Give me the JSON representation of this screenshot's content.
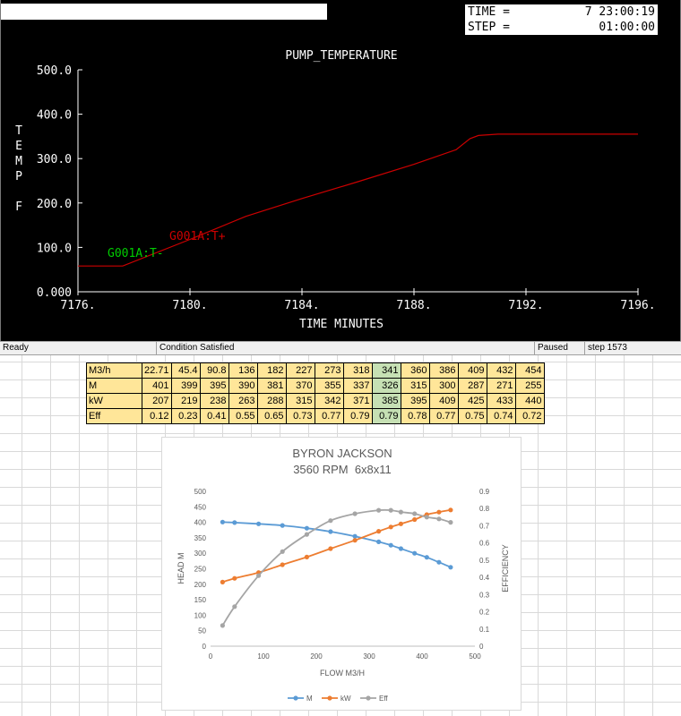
{
  "sim": {
    "time_label": "TIME =",
    "time_value": "7 23:00:19",
    "step_label": "STEP =",
    "step_value": "01:00:00",
    "plot_title": "PUMP_TEMPERATURE",
    "ylabel_letters": [
      "T",
      "E",
      "M",
      "P",
      "",
      "F"
    ],
    "xlabel": "TIME MINUTES",
    "y_ticks": [
      "500.0",
      "400.0",
      "300.0",
      "200.0",
      "100.0",
      "0.000"
    ],
    "x_ticks": [
      "7176.",
      "7180.",
      "7184.",
      "7188.",
      "7192.",
      "7196."
    ],
    "label_tplus": "G001A:T+",
    "label_tminus": "G001A:T-",
    "colors": {
      "background": "#000000",
      "axis": "#ffffff",
      "series": "#cc0000",
      "tminus": "#00cc00"
    }
  },
  "statusbar": {
    "ready": "Ready",
    "condition": "Condition Satisfied",
    "paused": "Paused",
    "step": "step 1573"
  },
  "table": {
    "rows": [
      {
        "header": "M3/h",
        "values": [
          "22.71",
          "45.4",
          "90.8",
          "136",
          "182",
          "227",
          "273",
          "318",
          "341",
          "360",
          "386",
          "409",
          "432",
          "454"
        ]
      },
      {
        "header": "M",
        "values": [
          "401",
          "399",
          "395",
          "390",
          "381",
          "370",
          "355",
          "337",
          "326",
          "315",
          "300",
          "287",
          "271",
          "255"
        ]
      },
      {
        "header": "kW",
        "values": [
          "207",
          "219",
          "238",
          "263",
          "288",
          "315",
          "342",
          "371",
          "385",
          "395",
          "409",
          "425",
          "433",
          "440"
        ]
      },
      {
        "header": "Eff",
        "values": [
          "0.12",
          "0.23",
          "0.41",
          "0.55",
          "0.65",
          "0.73",
          "0.77",
          "0.79",
          "0.79",
          "0.78",
          "0.77",
          "0.75",
          "0.74",
          "0.72"
        ]
      }
    ],
    "highlight_column": 8,
    "colors": {
      "cell": "#ffe699",
      "highlight": "#c6e0b4"
    }
  },
  "chart_data": [
    {
      "type": "line",
      "title": "PUMP_TEMPERATURE",
      "xlabel": "TIME MINUTES",
      "ylabel": "TEMP F",
      "xlim": [
        7176,
        7196
      ],
      "ylim": [
        0,
        500
      ],
      "series": [
        {
          "name": "G001A:T+",
          "x": [
            7176,
            7177.6,
            7180,
            7182,
            7184,
            7186,
            7188,
            7189.5,
            7190,
            7190.3,
            7191,
            7196
          ],
          "y": [
            58,
            58,
            118,
            170,
            210,
            248,
            287,
            320,
            345,
            352,
            355,
            355
          ]
        }
      ],
      "annotations": [
        "G001A:T+",
        "G001A:T-"
      ]
    },
    {
      "type": "line",
      "title": "BYRON JACKSON",
      "subtitle": "3560 RPM  6x8x11",
      "xlabel": "FLOW M3/H",
      "ylabel": "HEAD M",
      "y2label": "EFFICIENCY",
      "xlim": [
        0,
        500
      ],
      "ylim": [
        0,
        500
      ],
      "y2lim": [
        0,
        0.9
      ],
      "x_ticks": [
        "0",
        "100",
        "200",
        "300",
        "400",
        "500"
      ],
      "y_ticks": [
        "0",
        "50",
        "100",
        "150",
        "200",
        "250",
        "300",
        "350",
        "400",
        "450",
        "500"
      ],
      "y2_ticks": [
        "0",
        "0.1",
        "0.2",
        "0.3",
        "0.4",
        "0.5",
        "0.6",
        "0.7",
        "0.8",
        "0.9"
      ],
      "x": [
        22.71,
        45.4,
        90.8,
        136,
        182,
        227,
        273,
        318,
        341,
        360,
        386,
        409,
        432,
        454
      ],
      "series": [
        {
          "name": "M",
          "axis": "left",
          "color": "#5b9bd5",
          "values": [
            401,
            399,
            395,
            390,
            381,
            370,
            355,
            337,
            326,
            315,
            300,
            287,
            271,
            255
          ]
        },
        {
          "name": "kW",
          "axis": "left",
          "color": "#ed7d31",
          "values": [
            207,
            219,
            238,
            263,
            288,
            315,
            342,
            371,
            385,
            395,
            409,
            425,
            433,
            440
          ]
        },
        {
          "name": "Eff",
          "axis": "right",
          "color": "#a5a5a5",
          "values": [
            0.12,
            0.23,
            0.41,
            0.55,
            0.65,
            0.73,
            0.77,
            0.79,
            0.79,
            0.78,
            0.77,
            0.75,
            0.74,
            0.72
          ]
        }
      ],
      "legend": "bottom",
      "grid": false
    }
  ]
}
